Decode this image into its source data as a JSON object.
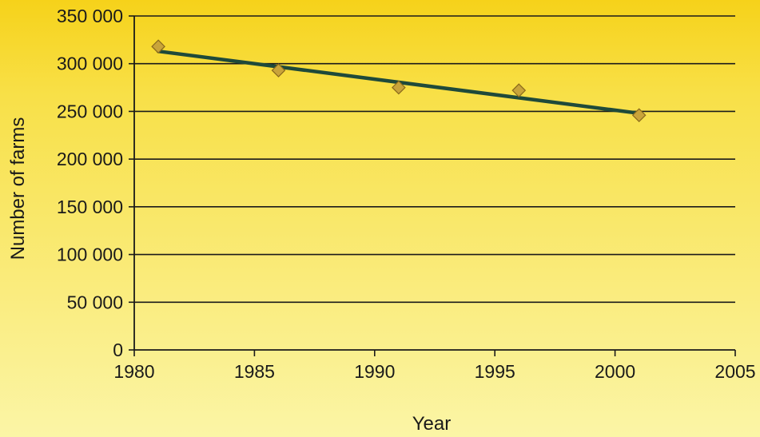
{
  "chart_data": {
    "type": "scatter",
    "title": "",
    "xlabel": "Year",
    "ylabel": "Number of farms",
    "xlim": [
      1980,
      2005
    ],
    "ylim": [
      0,
      350000
    ],
    "x_ticks": [
      1980,
      1985,
      1990,
      1995,
      2000,
      2005
    ],
    "x_tick_labels": [
      "1980",
      "1985",
      "1990",
      "1995",
      "2000",
      "2005"
    ],
    "y_ticks": [
      0,
      50000,
      100000,
      150000,
      200000,
      250000,
      300000,
      350000
    ],
    "y_tick_labels": [
      "0",
      "50 000",
      "100 000",
      "150 000",
      "200 000",
      "250 000",
      "300 000",
      "350 000"
    ],
    "grid": "horizontal",
    "series": [
      {
        "kind": "points",
        "x": [
          1981,
          1986,
          1991,
          1996,
          2001
        ],
        "y": [
          318000,
          293000,
          275000,
          272000,
          246000
        ]
      },
      {
        "kind": "trendline",
        "x": [
          1981,
          2001
        ],
        "y": [
          313000,
          248000
        ]
      }
    ],
    "colors": {
      "background_top": "#f6d21a",
      "background_bottom": "#fbf5a6",
      "gridline": "#1a1a1a",
      "trendline": "#1f4a3a",
      "marker_fill": "#c9a43a",
      "marker_stroke": "#8a6a1c"
    }
  }
}
